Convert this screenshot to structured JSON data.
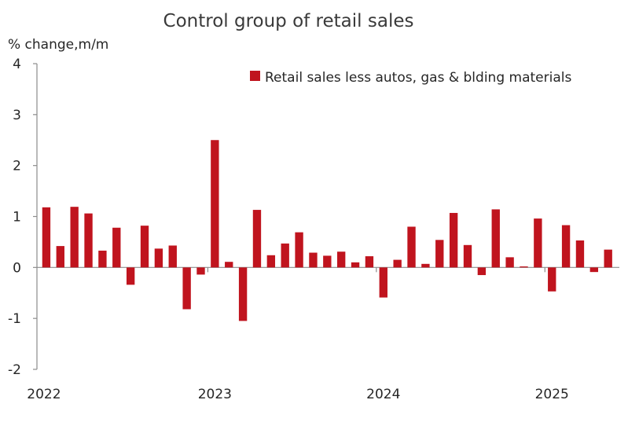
{
  "chart_data": {
    "type": "bar",
    "title": "Control group of retail sales",
    "ylabel": "% change,m/m",
    "xlabel": "",
    "ylim": [
      -2,
      4
    ],
    "yticks": [
      -2,
      -1,
      0,
      1,
      2,
      3,
      4
    ],
    "x_tick_labels": [
      "2022",
      "2023",
      "2024",
      "2025"
    ],
    "grid": false,
    "legend_position": "top-right",
    "bar_color": "#c0141e",
    "series": [
      {
        "name": "Retail sales less autos, gas & blding materials",
        "x": [
          "2022-01",
          "2022-02",
          "2022-03",
          "2022-04",
          "2022-05",
          "2022-06",
          "2022-07",
          "2022-08",
          "2022-09",
          "2022-10",
          "2022-11",
          "2022-12",
          "2023-01",
          "2023-02",
          "2023-03",
          "2023-04",
          "2023-05",
          "2023-06",
          "2023-07",
          "2023-08",
          "2023-09",
          "2023-10",
          "2023-11",
          "2023-12",
          "2024-01",
          "2024-02",
          "2024-03",
          "2024-04",
          "2024-05",
          "2024-06",
          "2024-07",
          "2024-08",
          "2024-09",
          "2024-10",
          "2024-11",
          "2024-12",
          "2025-01",
          "2025-02",
          "2025-03",
          "2025-04",
          "2025-05"
        ],
        "values": [
          1.18,
          0.42,
          1.19,
          1.06,
          0.33,
          0.78,
          -0.34,
          0.82,
          0.37,
          0.43,
          -0.82,
          -0.14,
          2.5,
          0.11,
          -1.05,
          1.13,
          0.24,
          0.47,
          0.69,
          0.29,
          0.23,
          0.31,
          0.1,
          0.22,
          -0.59,
          0.15,
          0.8,
          0.07,
          0.54,
          1.07,
          0.44,
          -0.15,
          1.14,
          0.2,
          0.02,
          0.96,
          -0.47,
          0.83,
          0.53,
          -0.09,
          0.35
        ]
      }
    ]
  }
}
